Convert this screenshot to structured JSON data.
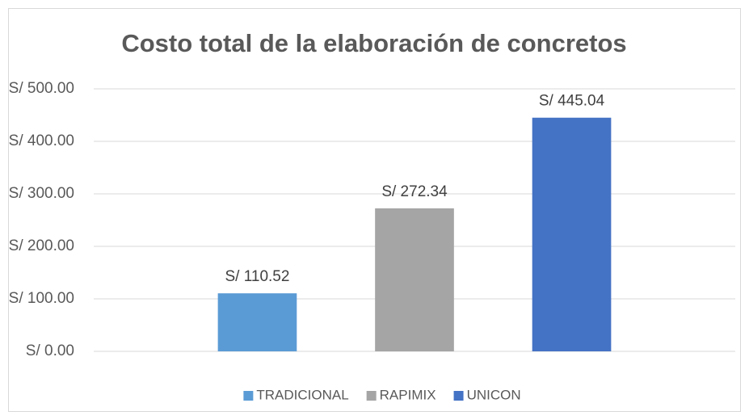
{
  "chart_data": {
    "type": "bar",
    "title": "Costo total de la elaboración de concretos",
    "categories": [
      null
    ],
    "series": [
      {
        "name": "TRADICIONAL",
        "color": "#5b9bd5",
        "values": [
          110.52
        ],
        "value_labels": [
          "S/ 110.52"
        ]
      },
      {
        "name": "RAPIMIX",
        "color": "#a5a5a5",
        "values": [
          272.34
        ],
        "value_labels": [
          "S/ 272.34"
        ]
      },
      {
        "name": "UNICON",
        "color": "#4472c4",
        "values": [
          445.04
        ],
        "value_labels": [
          "S/ 445.04"
        ]
      }
    ],
    "ylim": [
      0,
      500
    ],
    "yticks": [
      {
        "value": 0,
        "label": "S/ 0.00"
      },
      {
        "value": 100,
        "label": "S/ 100.00"
      },
      {
        "value": 200,
        "label": "S/ 200.00"
      },
      {
        "value": 300,
        "label": "S/ 300.00"
      },
      {
        "value": 400,
        "label": "S/ 400.00"
      },
      {
        "value": 500,
        "label": "S/ 500.00"
      }
    ],
    "grid": true,
    "legend": "bottom"
  }
}
